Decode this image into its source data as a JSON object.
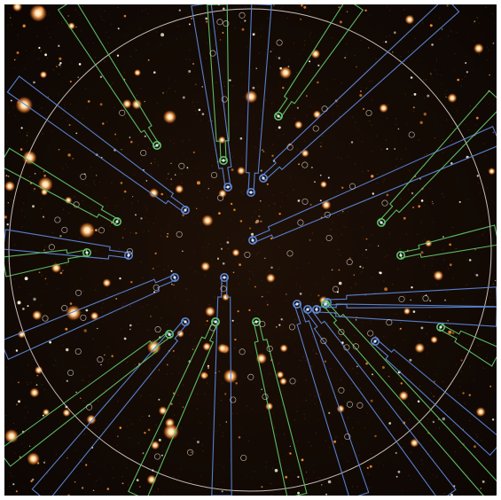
{
  "image": {
    "kind": "astronomical field image with multi-object spectrograph probe-arm overlay",
    "colors": {
      "sky_background": "#100904",
      "star_core": "#fff6e0",
      "star_halo": "#f08a2e",
      "field_of_view_circle": "#e8e0d8",
      "probe_arm_blue": "#5b86d6",
      "probe_arm_green": "#5fc46a",
      "target_marker": "#dfe8ff",
      "candidate_marker": "#e9dccf"
    }
  }
}
